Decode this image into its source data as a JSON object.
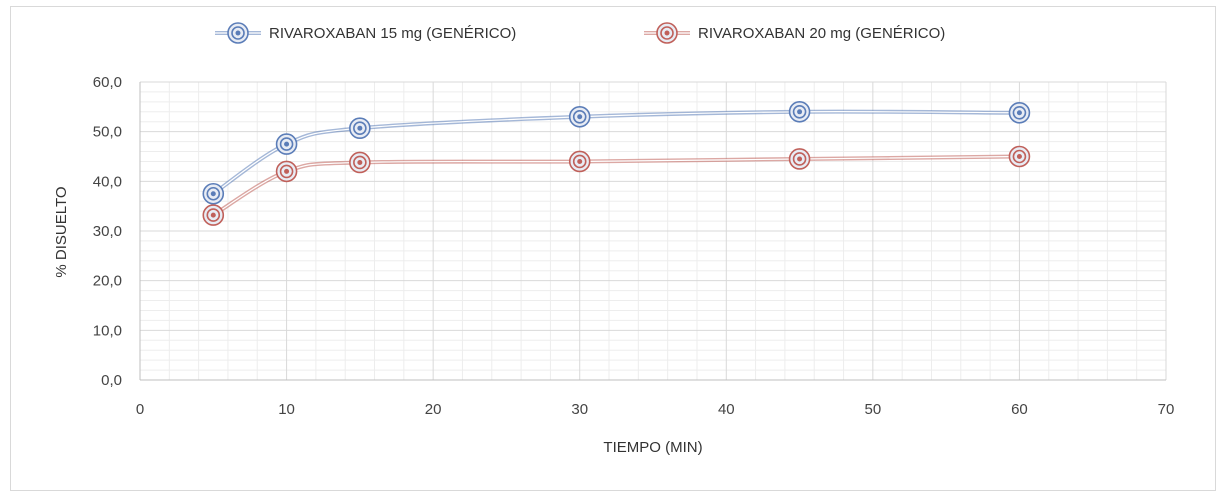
{
  "chart_data": {
    "type": "line",
    "title": "",
    "xlabel": "TIEMPO (MIN)",
    "ylabel": "% DISUELTO",
    "xlim": [
      0,
      70
    ],
    "ylim": [
      0,
      60
    ],
    "x_ticks": [
      0,
      10,
      20,
      30,
      40,
      50,
      60,
      70
    ],
    "y_ticks": [
      "0,0",
      "10,0",
      "20,0",
      "30,0",
      "40,0",
      "50,0",
      "60,0"
    ],
    "grid": true,
    "legend_position": "top",
    "x": [
      5,
      10,
      15,
      30,
      45,
      60
    ],
    "series": [
      {
        "name": "RIVAROXABAN 15 mg (GENÉRICO)",
        "color": "#5b7db8",
        "values": [
          37.5,
          47.5,
          50.7,
          53.0,
          54.0,
          53.8
        ]
      },
      {
        "name": "RIVAROXABAN 20 mg (GENÉRICO)",
        "color": "#c0605a",
        "values": [
          33.2,
          42.0,
          43.8,
          44.0,
          44.5,
          45.0
        ]
      }
    ]
  }
}
